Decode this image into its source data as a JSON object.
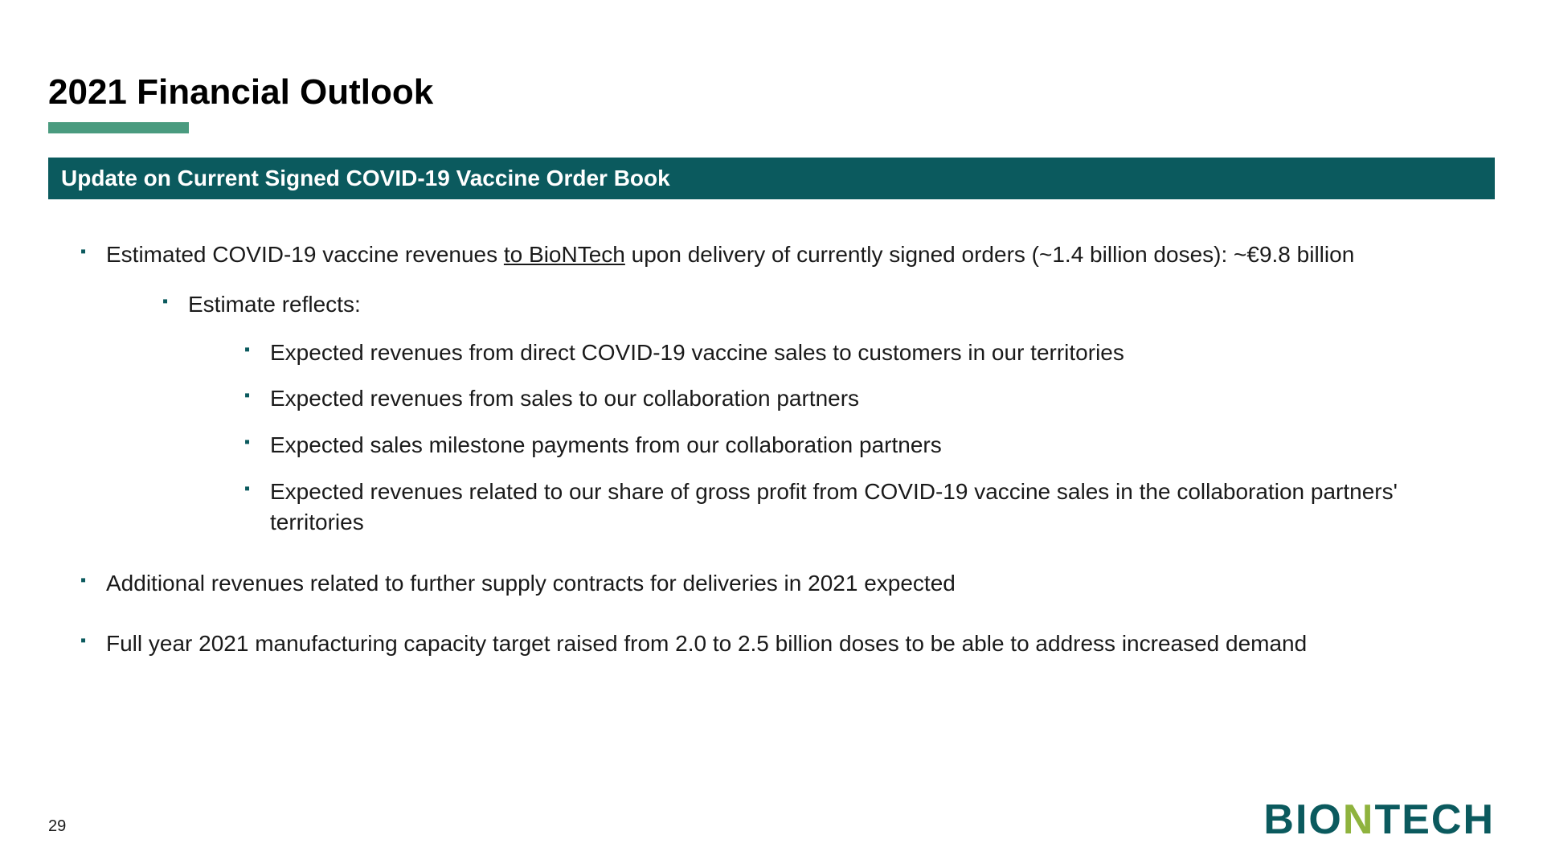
{
  "slide": {
    "title": "2021 Financial Outlook",
    "section_header": "Update on Current Signed COVID-19 Vaccine Order Book",
    "bullets": {
      "b1_pre": "Estimated COVID-19 vaccine revenues ",
      "b1_underline": "to BioNTech",
      "b1_post": " upon delivery of currently signed orders (~1.4 billion doses): ~€9.8 billion",
      "b1_1": "Estimate reflects:",
      "b1_1_1": "Expected revenues from direct COVID-19 vaccine sales to customers in our territories",
      "b1_1_2": "Expected revenues from sales to our collaboration partners",
      "b1_1_3": "Expected sales milestone payments from our collaboration partners",
      "b1_1_4": "Expected revenues related to our share of gross profit from COVID-19 vaccine sales in the collaboration partners' territories",
      "b2": "Additional revenues related to further supply contracts for deliveries in 2021 expected",
      "b3": "Full year 2021 manufacturing capacity target raised from 2.0 to 2.5 billion doses to be able to address increased demand"
    },
    "page_number": "29"
  },
  "styling": {
    "background_color": "#ffffff",
    "title_color": "#000000",
    "title_fontsize": 44,
    "underline_bar_color": "#4a9b7f",
    "section_header_bg": "#0b5a5e",
    "section_header_text_color": "#ffffff",
    "section_header_fontsize": 28,
    "body_text_color": "#1a1a1a",
    "body_fontsize": 28,
    "bullet_marker_color": "#0b5a5e",
    "logo_primary_color": "#0b5a5e",
    "logo_accent_color": "#8fb33e"
  }
}
